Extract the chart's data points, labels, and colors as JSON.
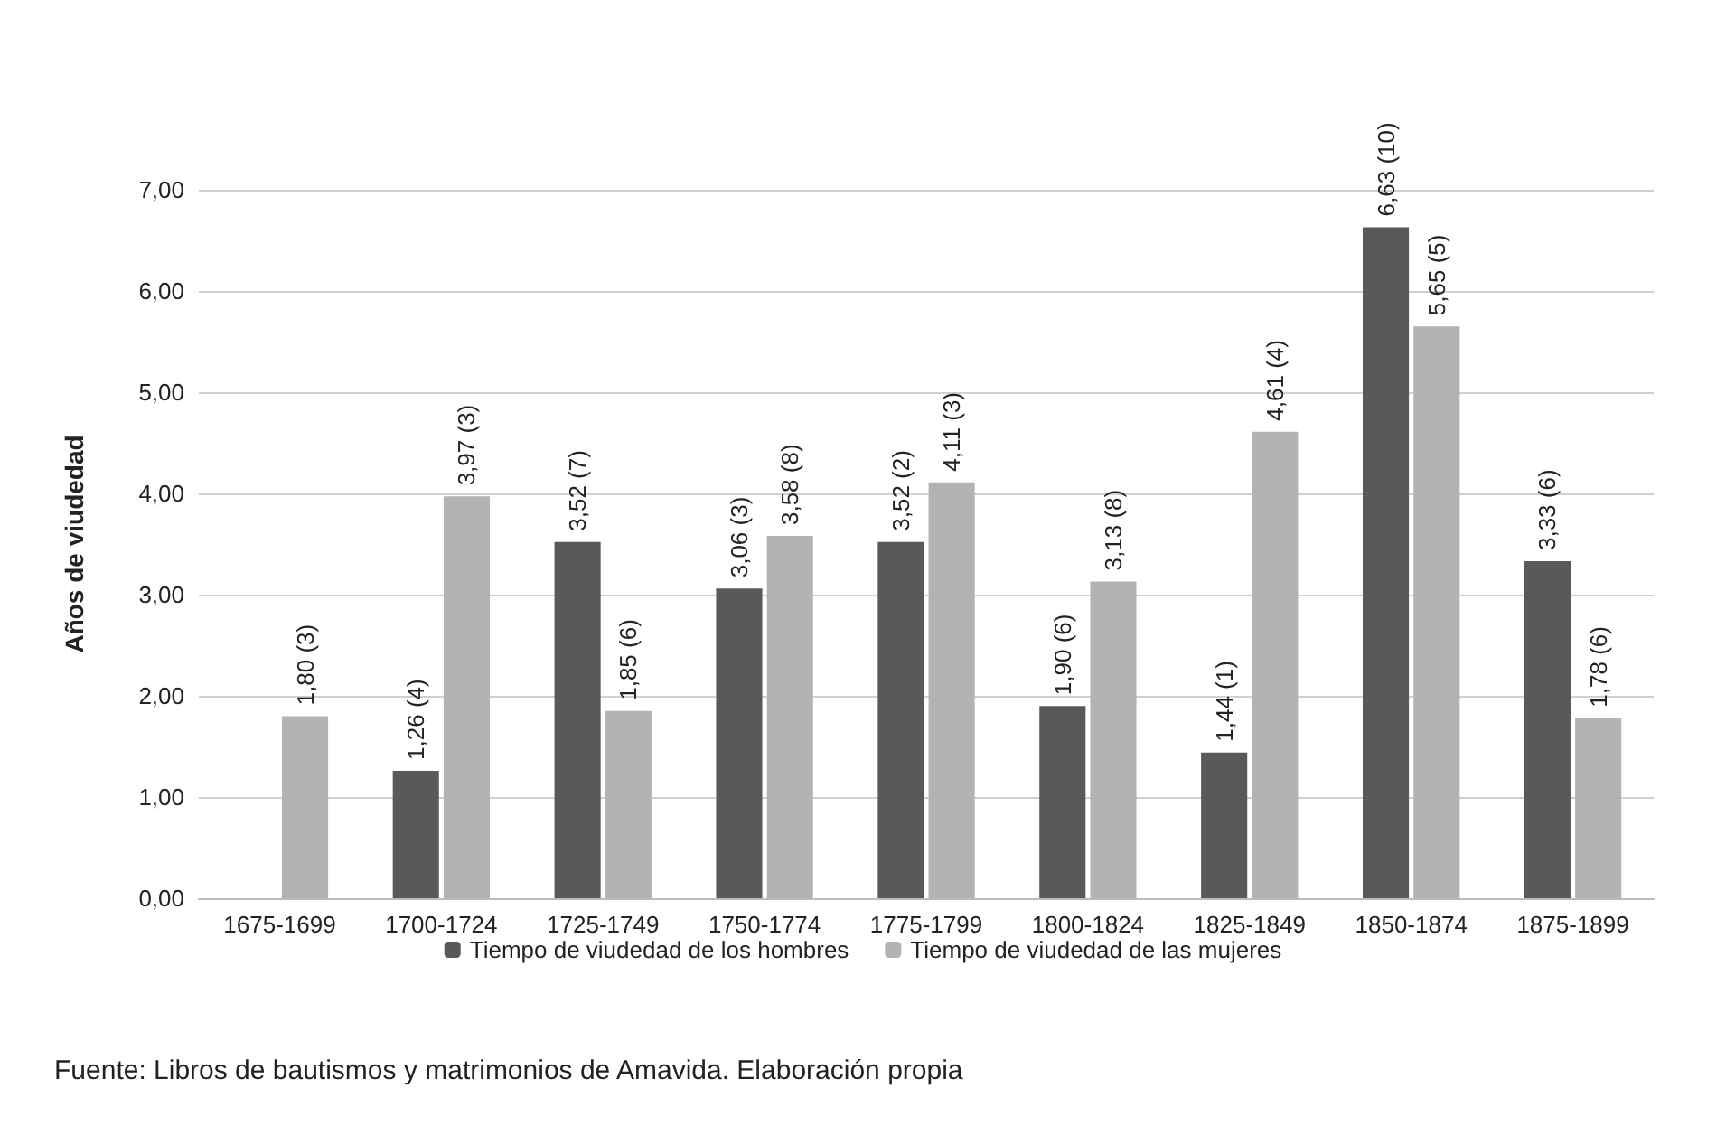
{
  "chart_data": {
    "type": "bar",
    "ylabel": "Años de viudedad",
    "categories": [
      "1675-1699",
      "1700-1724",
      "1725-1749",
      "1750-1774",
      "1775-1799",
      "1800-1824",
      "1825-1849",
      "1850-1874",
      "1875-1899"
    ],
    "series": [
      {
        "name": "Tiempo de viudedad de los hombres",
        "color": "#595959",
        "values": [
          null,
          1.26,
          3.52,
          3.06,
          3.52,
          1.9,
          1.44,
          6.63,
          3.33
        ],
        "value_labels": [
          null,
          "1,26 (4)",
          "3,52 (7)",
          "3,06 (3)",
          "3,52 (2)",
          "1,90 (6)",
          "1,44 (1)",
          "6,63 (10)",
          "3,33 (6)"
        ]
      },
      {
        "name": "Tiempo de viudedad de las mujeres",
        "color": "#b3b3b3",
        "values": [
          1.8,
          3.97,
          1.85,
          3.58,
          4.11,
          3.13,
          4.61,
          5.65,
          1.78
        ],
        "value_labels": [
          "1,80 (3)",
          "3,97 (3)",
          "1,85 (6)",
          "3,58 (8)",
          "4,11 (3)",
          "3,13 (8)",
          "4,61 (4)",
          "5,65 (5)",
          "1,78 (6)"
        ]
      }
    ],
    "ylim": [
      0,
      7
    ],
    "yticks": [
      {
        "value": 0,
        "label": "0,00"
      },
      {
        "value": 1,
        "label": "1,00"
      },
      {
        "value": 2,
        "label": "2,00"
      },
      {
        "value": 3,
        "label": "3,00"
      },
      {
        "value": 4,
        "label": "4,00"
      },
      {
        "value": 5,
        "label": "5,00"
      },
      {
        "value": 6,
        "label": "6,00"
      },
      {
        "value": 7,
        "label": "7,00"
      }
    ],
    "grid": "y",
    "legend": "bottom",
    "annotations": [
      "Fuente: Libros de bautismos y matrimonios de Amavida. Elaboración propia"
    ]
  }
}
